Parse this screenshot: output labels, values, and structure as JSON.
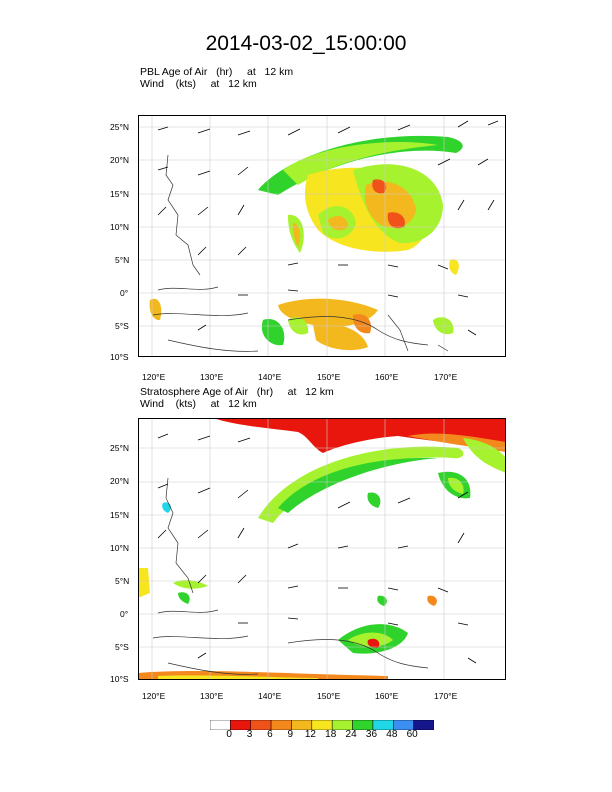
{
  "title": "2014-03-02_15:00:00",
  "panels": [
    {
      "field_line": "PBL Age of Air   (hr)     at   12 km",
      "wind_line": "Wind    (kts)     at   12 km"
    },
    {
      "field_line": "Stratosphere Age of Air   (hr)     at   12 km",
      "wind_line": "Wind    (kts)     at   12 km"
    }
  ],
  "axes": {
    "lon_ticks": [
      "120°E",
      "130°E",
      "140°E",
      "150°E",
      "160°E",
      "170°E"
    ],
    "lat_ticks": [
      "25°N",
      "20°N",
      "15°N",
      "10°N",
      "5°N",
      "0°",
      "5°S",
      "10°S"
    ]
  },
  "colorbar": {
    "labels": [
      "0",
      "3",
      "6",
      "9",
      "12",
      "18",
      "24",
      "36",
      "48",
      "60"
    ],
    "colors": [
      "#ffffff",
      "#e8160c",
      "#f0521a",
      "#f3891d",
      "#f4b81f",
      "#f7e520",
      "#a6f22e",
      "#2fd32b",
      "#1fd7e6",
      "#3a8ff0",
      "#16168c"
    ]
  }
}
